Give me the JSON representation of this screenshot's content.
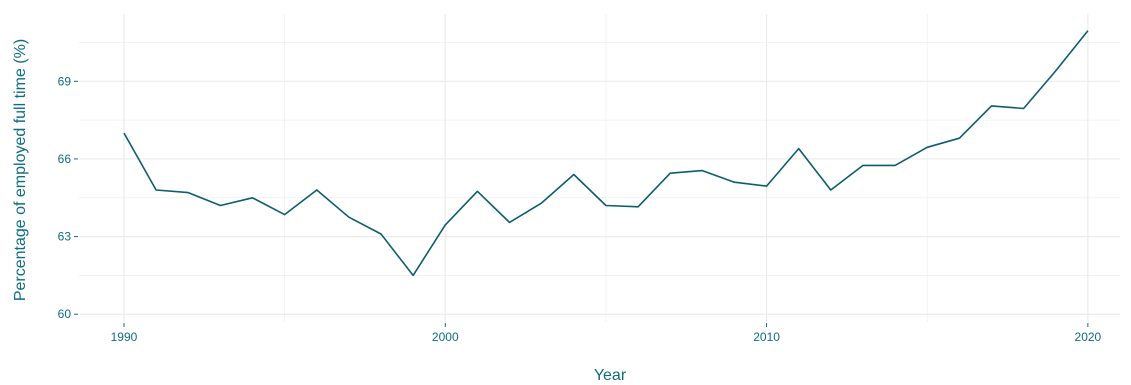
{
  "chart_data": {
    "type": "line",
    "xlabel": "Year",
    "ylabel": "Percentage of employed full time (%)",
    "xlim": [
      1988.6,
      2021.0
    ],
    "ylim": [
      59.7,
      71.6
    ],
    "x_ticks": [
      1990,
      2000,
      2010,
      2020
    ],
    "x_tick_labels": [
      "1990",
      "2000",
      "2010",
      "2020"
    ],
    "x_minor_ticks": [
      1995,
      2005,
      2015
    ],
    "y_ticks": [
      60,
      63,
      66,
      69
    ],
    "y_tick_labels": [
      "60",
      "63",
      "66",
      "69"
    ],
    "y_minor_ticks": [
      61.5,
      64.5,
      67.5,
      70.5
    ],
    "grid": true,
    "colors": {
      "line": "#0e5d6e",
      "text": "#0e6d80",
      "grid": "#ebebeb"
    },
    "series": [
      {
        "x": [
          1990,
          1991,
          1992,
          1993,
          1994,
          1995,
          1996,
          1997,
          1998,
          1999,
          2000,
          2001,
          2002,
          2003,
          2004,
          2005,
          2006,
          2007,
          2008,
          2009,
          2010,
          2011,
          2012,
          2013,
          2014,
          2015,
          2016,
          2017,
          2018,
          2019,
          2020
        ],
        "values": [
          67.0,
          64.8,
          64.7,
          64.2,
          64.5,
          63.85,
          64.8,
          63.75,
          63.1,
          61.5,
          63.45,
          64.75,
          63.55,
          64.3,
          65.4,
          64.2,
          64.15,
          65.45,
          65.55,
          65.1,
          64.95,
          66.4,
          64.8,
          65.75,
          65.75,
          66.45,
          66.8,
          68.05,
          67.95,
          69.4,
          70.95
        ]
      }
    ]
  }
}
